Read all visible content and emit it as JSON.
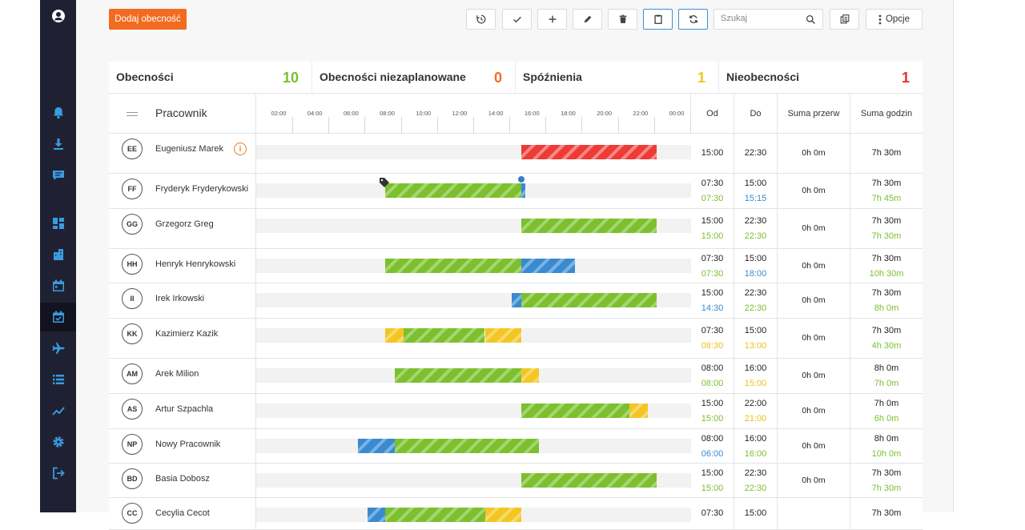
{
  "sidebar": {
    "icons": [
      {
        "name": "user-circle-icon",
        "top": 2,
        "color": "#ffffff"
      },
      {
        "name": "bell-icon",
        "top": 123,
        "color": "#3a9ce0"
      },
      {
        "name": "download-icon",
        "top": 162,
        "color": "#3a9ce0"
      },
      {
        "name": "chat-icon",
        "top": 201,
        "color": "#3a9ce0"
      },
      {
        "name": "dashboard-icon",
        "top": 261,
        "color": "#3a9ce0"
      },
      {
        "name": "building-icon",
        "top": 300,
        "color": "#3a9ce0"
      },
      {
        "name": "calendar-icon",
        "top": 339,
        "color": "#3a9ce0"
      },
      {
        "name": "calendar-check-icon",
        "top": 378,
        "color": "#3a9ce0",
        "active": true
      },
      {
        "name": "plane-icon",
        "top": 417,
        "color": "#3a9ce0"
      },
      {
        "name": "list-icon",
        "top": 456,
        "color": "#3a9ce0"
      },
      {
        "name": "chart-line-icon",
        "top": 495,
        "color": "#3a9ce0"
      },
      {
        "name": "gear-icon",
        "top": 534,
        "color": "#3a9ce0"
      },
      {
        "name": "logout-icon",
        "top": 573,
        "color": "#3a9ce0"
      }
    ]
  },
  "toolbar": {
    "add_label": "Dodaj obecność",
    "search_placeholder": "Szukaj",
    "options_label": "Opcje"
  },
  "stats": [
    {
      "label": "Obecności",
      "value": "10",
      "color": "#7cbf2f"
    },
    {
      "label": "Obecności niezaplanowane",
      "value": "0",
      "color": "#f36b21"
    },
    {
      "label": "Spóźnienia",
      "value": "1",
      "color": "#f3c623"
    },
    {
      "label": "Nieobecności",
      "value": "1",
      "color": "#e8302d"
    }
  ],
  "table": {
    "employee_header": "Pracownik",
    "hours": [
      "02:00",
      "04:00",
      "06:00",
      "08:00",
      "10:00",
      "12:00",
      "14:00",
      "16:00",
      "18:00",
      "20:00",
      "22:00",
      "00:00"
    ],
    "col_od": "Od",
    "col_do": "Do",
    "col_breaks": "Suma przerw",
    "col_total": "Suma godzin",
    "rows": [
      {
        "initials": "EE",
        "name": "Eugeniusz Marek",
        "info": true,
        "od": [
          "15:00"
        ],
        "do": [
          "22:30"
        ],
        "breaks": "0h 0m",
        "total": [
          "7h 30m"
        ],
        "bars": [
          {
            "color": "red",
            "start": 15.0,
            "end": 22.5
          }
        ]
      },
      {
        "initials": "FF",
        "name": "Fryderyk Fryderykowski",
        "od": [
          "07:30",
          "07:30"
        ],
        "odc": [
          "",
          "g"
        ],
        "do": [
          "15:00",
          "15:15"
        ],
        "doc": [
          "",
          "b"
        ],
        "breaks": "0h 0m",
        "total": [
          "7h 30m",
          "7h 45m"
        ],
        "totc": [
          "",
          "g"
        ],
        "bars": [
          {
            "color": "green",
            "start": 7.5,
            "end": 15.0
          },
          {
            "color": "blue",
            "start": 15.0,
            "end": 15.25
          }
        ],
        "tag": 7.5,
        "pin": 15.0
      },
      {
        "initials": "GG",
        "name": "Grzegorz Greg",
        "od": [
          "15:00",
          "15:00"
        ],
        "odc": [
          "",
          "g"
        ],
        "do": [
          "22:30",
          "22:30"
        ],
        "doc": [
          "",
          "g"
        ],
        "breaks": "0h 0m",
        "total": [
          "7h 30m",
          "7h 30m"
        ],
        "totc": [
          "",
          "g"
        ],
        "bars": [
          {
            "color": "green",
            "start": 15.0,
            "end": 22.5
          }
        ]
      },
      {
        "initials": "HH",
        "name": "Henryk Henrykowski",
        "od": [
          "07:30",
          "07:30"
        ],
        "odc": [
          "",
          "g"
        ],
        "do": [
          "15:00",
          "18:00"
        ],
        "doc": [
          "",
          "b"
        ],
        "breaks": "0h 0m",
        "total": [
          "7h 30m",
          "10h 30m"
        ],
        "totc": [
          "",
          "g"
        ],
        "bars": [
          {
            "color": "green",
            "start": 7.5,
            "end": 15.0
          },
          {
            "color": "blue",
            "start": 15.0,
            "end": 18.0
          }
        ]
      },
      {
        "initials": "II",
        "name": "Irek Irkowski",
        "od": [
          "15:00",
          "14:30"
        ],
        "odc": [
          "",
          "b"
        ],
        "do": [
          "22:30",
          "22:30"
        ],
        "doc": [
          "",
          "g"
        ],
        "breaks": "0h 0m",
        "total": [
          "7h 30m",
          "8h 0m"
        ],
        "totc": [
          "",
          "g"
        ],
        "bars": [
          {
            "color": "blue",
            "start": 14.5,
            "end": 15.0
          },
          {
            "color": "green",
            "start": 15.0,
            "end": 22.5
          }
        ]
      },
      {
        "initials": "KK",
        "name": "Kazimierz Kazik",
        "od": [
          "07:30",
          "08:30"
        ],
        "odc": [
          "",
          "y"
        ],
        "do": [
          "15:00",
          "13:00"
        ],
        "doc": [
          "",
          "y"
        ],
        "breaks": "0h 0m",
        "total": [
          "7h 30m",
          "4h 30m"
        ],
        "totc": [
          "",
          "g"
        ],
        "bars": [
          {
            "color": "yellow",
            "start": 7.5,
            "end": 8.5
          },
          {
            "color": "green",
            "start": 8.5,
            "end": 13.0
          },
          {
            "color": "yellow",
            "start": 13.0,
            "end": 15.0
          }
        ]
      },
      {
        "initials": "AM",
        "name": "Arek Milion",
        "od": [
          "08:00",
          "08:00"
        ],
        "odc": [
          "",
          "g"
        ],
        "do": [
          "16:00",
          "15:00"
        ],
        "doc": [
          "",
          "y"
        ],
        "breaks": "0h 0m",
        "total": [
          "8h 0m",
          "7h 0m"
        ],
        "totc": [
          "",
          "g"
        ],
        "bars": [
          {
            "color": "green",
            "start": 8.0,
            "end": 15.0
          },
          {
            "color": "yellow",
            "start": 15.0,
            "end": 16.0
          }
        ]
      },
      {
        "initials": "AS",
        "name": "Artur Szpachla",
        "od": [
          "15:00",
          "15:00"
        ],
        "odc": [
          "",
          "g"
        ],
        "do": [
          "22:00",
          "21:00"
        ],
        "doc": [
          "",
          "y"
        ],
        "breaks": "0h 0m",
        "total": [
          "7h 0m",
          "6h 0m"
        ],
        "totc": [
          "",
          "g"
        ],
        "bars": [
          {
            "color": "green",
            "start": 15.0,
            "end": 21.0
          },
          {
            "color": "yellow",
            "start": 21.0,
            "end": 22.0
          }
        ]
      },
      {
        "initials": "NP",
        "name": "Nowy Pracownik",
        "od": [
          "08:00",
          "06:00"
        ],
        "odc": [
          "",
          "b"
        ],
        "do": [
          "16:00",
          "16:00"
        ],
        "doc": [
          "",
          "g"
        ],
        "breaks": "0h 0m",
        "total": [
          "8h 0m",
          "10h 0m"
        ],
        "totc": [
          "",
          "g"
        ],
        "bars": [
          {
            "color": "blue",
            "start": 6.0,
            "end": 8.0
          },
          {
            "color": "green",
            "start": 8.0,
            "end": 16.0
          }
        ]
      },
      {
        "initials": "BD",
        "name": "Basia Dobosz",
        "od": [
          "15:00",
          "15:00"
        ],
        "odc": [
          "",
          "g"
        ],
        "do": [
          "22:30",
          "22:30"
        ],
        "doc": [
          "",
          "g"
        ],
        "breaks": "0h 0m",
        "total": [
          "7h 30m",
          "7h 30m"
        ],
        "totc": [
          "",
          "g"
        ],
        "bars": [
          {
            "color": "green",
            "start": 15.0,
            "end": 22.5
          }
        ]
      },
      {
        "initials": "CC",
        "name": "Cecylia Cecot",
        "od": [
          "07:30"
        ],
        "do": [
          "15:00"
        ],
        "breaks": "",
        "total": [
          "7h 30m"
        ],
        "bars": [
          {
            "color": "blue",
            "start": 6.5,
            "end": 7.5
          },
          {
            "color": "green",
            "start": 7.5,
            "end": 13.0
          },
          {
            "color": "yellow",
            "start": 13.0,
            "end": 15.0
          }
        ]
      }
    ]
  }
}
